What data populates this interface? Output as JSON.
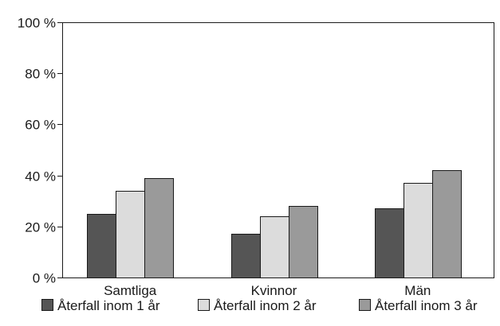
{
  "chart_data": {
    "type": "bar",
    "categories": [
      "Samtliga",
      "Kvinnor",
      "Män"
    ],
    "series": [
      {
        "name": "Återfall inom 1 år",
        "values": [
          25,
          17,
          27
        ],
        "color": "#555555"
      },
      {
        "name": "Återfall inom 2 år",
        "values": [
          34,
          24,
          37
        ],
        "color": "#dcdcdc"
      },
      {
        "name": "Återfall inom 3 år",
        "values": [
          39,
          28,
          42
        ],
        "color": "#9a9a9a"
      }
    ],
    "y_ticks": [
      "0 %",
      "20 %",
      "40 %",
      "60 %",
      "80 %",
      "100 %"
    ],
    "y_tick_values": [
      0,
      20,
      40,
      60,
      80,
      100
    ],
    "ylim": [
      0,
      100
    ],
    "grid": false,
    "legend_position": "bottom"
  }
}
